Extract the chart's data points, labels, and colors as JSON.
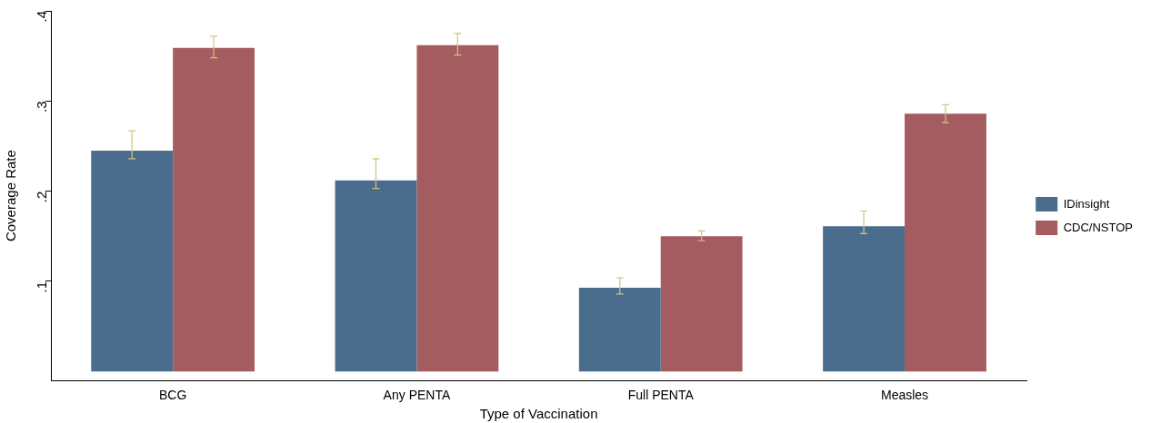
{
  "chart_data": {
    "type": "bar",
    "xlabel": "Type of Vaccination",
    "ylabel": "Coverage Rate",
    "categories": [
      "BCG",
      "Any PENTA",
      "Full PENTA",
      "Measles"
    ],
    "series": [
      {
        "name": "IDinsight",
        "color": "#4a6d8e",
        "values": [
          0.245,
          0.212,
          0.093,
          0.161
        ],
        "errors": [
          [
            0.236,
            0.267
          ],
          [
            0.203,
            0.236
          ],
          [
            0.086,
            0.104
          ],
          [
            0.153,
            0.178
          ]
        ]
      },
      {
        "name": "CDC/NSTOP",
        "color": "#a45c60",
        "values": [
          0.359,
          0.362,
          0.15,
          0.286
        ],
        "errors": [
          [
            0.348,
            0.372
          ],
          [
            0.351,
            0.375
          ],
          [
            0.145,
            0.156
          ],
          [
            0.276,
            0.296
          ]
        ]
      }
    ],
    "ylim": [
      -0.01,
      0.4
    ],
    "yticks": [
      {
        "value": 0.1,
        "label": ".1"
      },
      {
        "value": 0.2,
        "label": ".2"
      },
      {
        "value": 0.3,
        "label": ".3"
      },
      {
        "value": 0.4,
        "label": ".4"
      }
    ],
    "grid": false,
    "legend": "right"
  }
}
